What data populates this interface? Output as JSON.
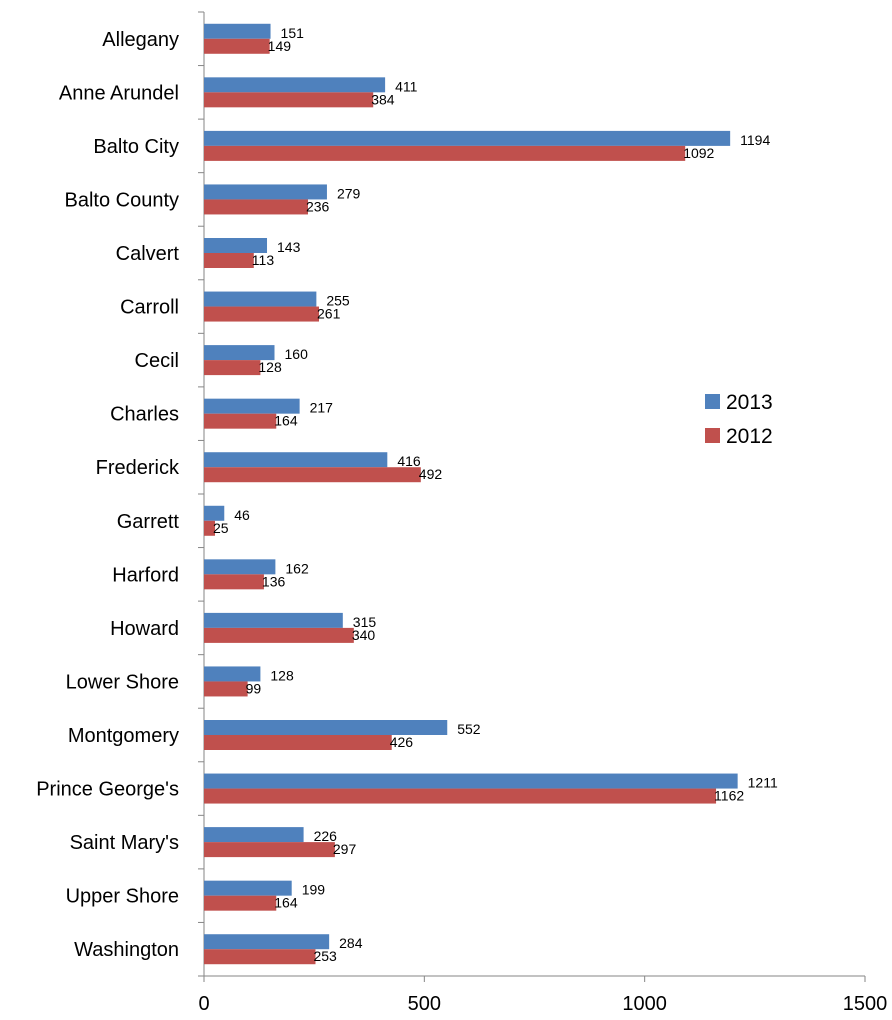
{
  "chart_data": {
    "type": "bar",
    "orientation": "horizontal",
    "categories": [
      "Allegany",
      "Anne Arundel",
      "Balto City",
      "Balto County",
      "Calvert",
      "Carroll",
      "Cecil",
      "Charles",
      "Frederick",
      "Garrett",
      "Harford",
      "Howard",
      "Lower Shore",
      "Montgomery",
      "Prince George's",
      "Saint Mary's",
      "Upper Shore",
      "Washington"
    ],
    "series": [
      {
        "name": "2013",
        "color": "#4F81BD",
        "values": [
          151,
          411,
          1194,
          279,
          143,
          255,
          160,
          217,
          416,
          46,
          162,
          315,
          128,
          552,
          1211,
          226,
          199,
          284
        ]
      },
      {
        "name": "2012",
        "color": "#C0504D",
        "values": [
          149,
          384,
          1092,
          236,
          113,
          261,
          128,
          164,
          492,
          25,
          136,
          340,
          99,
          426,
          1162,
          297,
          164,
          253
        ]
      }
    ],
    "xlim": [
      0,
      1500
    ],
    "xticks": [
      0,
      500,
      1000,
      1500
    ],
    "title": "",
    "xlabel": "",
    "ylabel": "",
    "grid": false,
    "legend_position": "right"
  }
}
